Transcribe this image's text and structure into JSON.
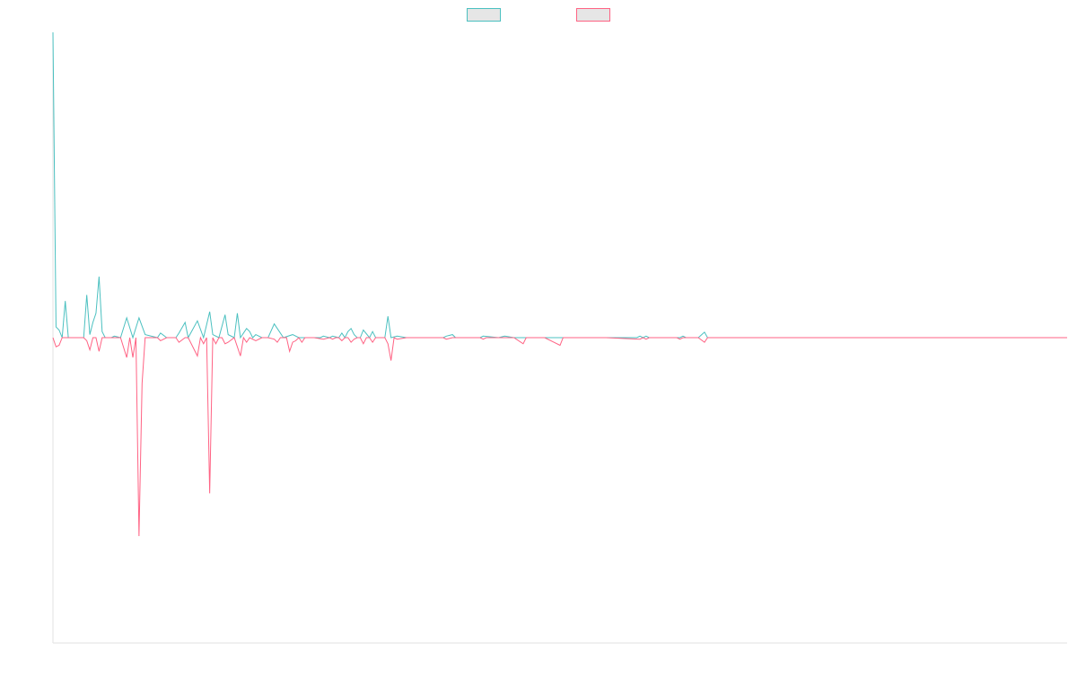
{
  "chart_data": {
    "type": "line",
    "title": "",
    "xlabel": "",
    "ylabel": "",
    "grid": false,
    "legend_position": "top-center",
    "ylim": [
      -100,
      100
    ],
    "series": [
      {
        "name": "",
        "color": "#4bc0c0",
        "points": [
          [
            0,
            100
          ],
          [
            1,
            3.5
          ],
          [
            2,
            2.5
          ],
          [
            3,
            0
          ],
          [
            4,
            12
          ],
          [
            5,
            0
          ],
          [
            6,
            0
          ],
          [
            7,
            0
          ],
          [
            8,
            0
          ],
          [
            9,
            0
          ],
          [
            10,
            0
          ],
          [
            11,
            14
          ],
          [
            12,
            1
          ],
          [
            13,
            5
          ],
          [
            14,
            8
          ],
          [
            15,
            20
          ],
          [
            16,
            2
          ],
          [
            17,
            0
          ],
          [
            18,
            0
          ],
          [
            19,
            0
          ],
          [
            20,
            0.5
          ],
          [
            22,
            0
          ],
          [
            24,
            6.5
          ],
          [
            26,
            0
          ],
          [
            28,
            6.5
          ],
          [
            30,
            1
          ],
          [
            34,
            0
          ],
          [
            35,
            1.5
          ],
          [
            37,
            0
          ],
          [
            40,
            0
          ],
          [
            41,
            1.5
          ],
          [
            43,
            5
          ],
          [
            44,
            0
          ],
          [
            47,
            5.5
          ],
          [
            49,
            0
          ],
          [
            51,
            8.5
          ],
          [
            52,
            1
          ],
          [
            54,
            0
          ],
          [
            56,
            7.5
          ],
          [
            57,
            1
          ],
          [
            59,
            0
          ],
          [
            60,
            8
          ],
          [
            61,
            0
          ],
          [
            63,
            3
          ],
          [
            64,
            2
          ],
          [
            65,
            0
          ],
          [
            66,
            1
          ],
          [
            68,
            0
          ],
          [
            70,
            0
          ],
          [
            72,
            4.5
          ],
          [
            73,
            3
          ],
          [
            75,
            0
          ],
          [
            78,
            1
          ],
          [
            80,
            0
          ],
          [
            83,
            0
          ],
          [
            85,
            0
          ],
          [
            87,
            0
          ],
          [
            88,
            0.5
          ],
          [
            90,
            0
          ],
          [
            91,
            0.5
          ],
          [
            93,
            0
          ],
          [
            94,
            1.5
          ],
          [
            95,
            0
          ],
          [
            96,
            2
          ],
          [
            97,
            3
          ],
          [
            98,
            1
          ],
          [
            99,
            0
          ],
          [
            100,
            0
          ],
          [
            101,
            2.5
          ],
          [
            103,
            0
          ],
          [
            104,
            2
          ],
          [
            105,
            0
          ],
          [
            106,
            0
          ],
          [
            108,
            0
          ],
          [
            109,
            7
          ],
          [
            110,
            0
          ],
          [
            112,
            0.5
          ],
          [
            115,
            0
          ],
          [
            120,
            0
          ],
          [
            125,
            0
          ],
          [
            127,
            0
          ],
          [
            128,
            0.5
          ],
          [
            130,
            1
          ],
          [
            131,
            0
          ],
          [
            133,
            0
          ],
          [
            139,
            0
          ],
          [
            140,
            0.5
          ],
          [
            145,
            0
          ],
          [
            147,
            0.5
          ],
          [
            150,
            0
          ],
          [
            153,
            0
          ],
          [
            160,
            0
          ],
          [
            165,
            0
          ],
          [
            170,
            0
          ],
          [
            173,
            0
          ],
          [
            180,
            0
          ],
          [
            185,
            0
          ],
          [
            190,
            0
          ],
          [
            191,
            0.5
          ],
          [
            192,
            0
          ],
          [
            193,
            0.5
          ],
          [
            194,
            0
          ],
          [
            197,
            0
          ],
          [
            198,
            0
          ],
          [
            203,
            0
          ],
          [
            204,
            0
          ],
          [
            205,
            0.5
          ],
          [
            206,
            0
          ],
          [
            210,
            0
          ],
          [
            212,
            1.8
          ],
          [
            213,
            0
          ],
          [
            220,
            0
          ],
          [
            250,
            0
          ],
          [
            300,
            0
          ],
          [
            330,
            0
          ]
        ]
      },
      {
        "name": "",
        "color": "#ff6384",
        "points": [
          [
            0,
            0
          ],
          [
            1,
            -3
          ],
          [
            2,
            -2.5
          ],
          [
            3,
            0
          ],
          [
            4,
            0
          ],
          [
            5,
            0
          ],
          [
            6,
            0
          ],
          [
            7,
            0
          ],
          [
            8,
            0
          ],
          [
            9,
            0
          ],
          [
            10,
            0
          ],
          [
            11,
            -1
          ],
          [
            12,
            -4
          ],
          [
            13,
            0
          ],
          [
            14,
            0
          ],
          [
            15,
            -4.5
          ],
          [
            16,
            0
          ],
          [
            17,
            0
          ],
          [
            18,
            0
          ],
          [
            19,
            0
          ],
          [
            20,
            0
          ],
          [
            22,
            0
          ],
          [
            24,
            -6.5
          ],
          [
            25,
            0
          ],
          [
            26,
            -6.5
          ],
          [
            27,
            0
          ],
          [
            28,
            -65
          ],
          [
            29,
            -15
          ],
          [
            30,
            0
          ],
          [
            34,
            0
          ],
          [
            35,
            -1
          ],
          [
            37,
            0
          ],
          [
            40,
            0
          ],
          [
            41,
            -1.5
          ],
          [
            43,
            0
          ],
          [
            44,
            0
          ],
          [
            47,
            -6
          ],
          [
            48,
            0
          ],
          [
            49,
            -2
          ],
          [
            50,
            0
          ],
          [
            51,
            -51
          ],
          [
            52,
            0
          ],
          [
            53,
            -2
          ],
          [
            54,
            0
          ],
          [
            55,
            0
          ],
          [
            56,
            -2
          ],
          [
            57,
            -1.5
          ],
          [
            59,
            0
          ],
          [
            61,
            -6
          ],
          [
            62,
            0
          ],
          [
            63,
            -1.5
          ],
          [
            64,
            0
          ],
          [
            66,
            -1
          ],
          [
            68,
            0
          ],
          [
            70,
            0
          ],
          [
            72,
            -0.5
          ],
          [
            73,
            -1.5
          ],
          [
            74,
            0
          ],
          [
            76,
            0
          ],
          [
            77,
            -4.5
          ],
          [
            78,
            -1.5
          ],
          [
            79,
            -1
          ],
          [
            80,
            0
          ],
          [
            81,
            -1.5
          ],
          [
            82,
            0
          ],
          [
            85,
            0
          ],
          [
            88,
            -0.5
          ],
          [
            90,
            0
          ],
          [
            91,
            -0.5
          ],
          [
            92,
            0
          ],
          [
            93,
            0
          ],
          [
            94,
            -1
          ],
          [
            95,
            0
          ],
          [
            96,
            0
          ],
          [
            97,
            -1.5
          ],
          [
            98,
            -0.5
          ],
          [
            99,
            0
          ],
          [
            100,
            0
          ],
          [
            101,
            -2
          ],
          [
            102,
            0
          ],
          [
            103,
            0
          ],
          [
            104,
            -1.5
          ],
          [
            105,
            0
          ],
          [
            106,
            0
          ],
          [
            108,
            0
          ],
          [
            109,
            -2
          ],
          [
            110,
            -7.5
          ],
          [
            111,
            0
          ],
          [
            112,
            -0.5
          ],
          [
            115,
            0
          ],
          [
            120,
            0
          ],
          [
            125,
            0
          ],
          [
            127,
            0
          ],
          [
            128,
            -0.5
          ],
          [
            130,
            0
          ],
          [
            139,
            0
          ],
          [
            140,
            -0.5
          ],
          [
            141,
            0
          ],
          [
            150,
            0
          ],
          [
            153,
            -2
          ],
          [
            154,
            0
          ],
          [
            160,
            0
          ],
          [
            165,
            -2.5
          ],
          [
            166,
            0
          ],
          [
            170,
            0
          ],
          [
            173,
            0
          ],
          [
            180,
            0
          ],
          [
            191,
            -0.5
          ],
          [
            192,
            0
          ],
          [
            193,
            -0.5
          ],
          [
            194,
            0
          ],
          [
            203,
            0
          ],
          [
            204,
            -0.5
          ],
          [
            205,
            0
          ],
          [
            210,
            0
          ],
          [
            212,
            -1.5
          ],
          [
            213,
            0
          ],
          [
            220,
            0
          ],
          [
            250,
            0
          ],
          [
            300,
            0
          ],
          [
            330,
            0
          ]
        ]
      }
    ]
  }
}
